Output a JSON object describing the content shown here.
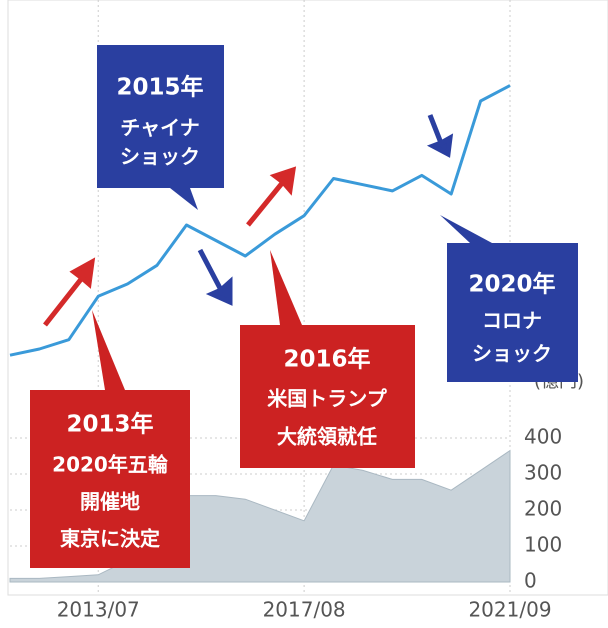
{
  "chart_data": {
    "type": "line",
    "categories": [
      null,
      null,
      null,
      "2013/07",
      null,
      null,
      null,
      null,
      null,
      null,
      "2017/08",
      null,
      null,
      null,
      null,
      null,
      null,
      "2021/09"
    ],
    "series": [
      {
        "type": "line",
        "color": "#3a9ad9",
        "values": [
          8,
          10,
          13,
          27,
          31,
          37,
          50,
          45,
          40,
          47,
          53,
          65,
          63,
          61,
          66,
          60,
          90,
          95
        ]
      },
      {
        "type": "area",
        "axis": "y2",
        "color": "#c9d3da",
        "values": [
          10,
          10,
          15,
          20,
          60,
          170,
          240,
          240,
          230,
          200,
          170,
          325,
          310,
          285,
          285,
          255,
          310,
          365
        ]
      }
    ],
    "ylim": [
      0,
      100
    ],
    "y2lim": [
      0,
      400
    ],
    "y2ticks": [
      0,
      100,
      200,
      300,
      400
    ],
    "y2label": "(億円)",
    "annotations": [
      {
        "lines": [
          "2013年",
          "2020年五輪",
          "開催地",
          "東京に決定"
        ]
      },
      {
        "lines": [
          "2015年",
          "チャイナ",
          "ショック"
        ]
      },
      {
        "lines": [
          "2016年",
          "米国トランプ",
          "大統領就任"
        ]
      },
      {
        "lines": [
          "2020年",
          "コロナ",
          "ショック"
        ]
      }
    ]
  }
}
